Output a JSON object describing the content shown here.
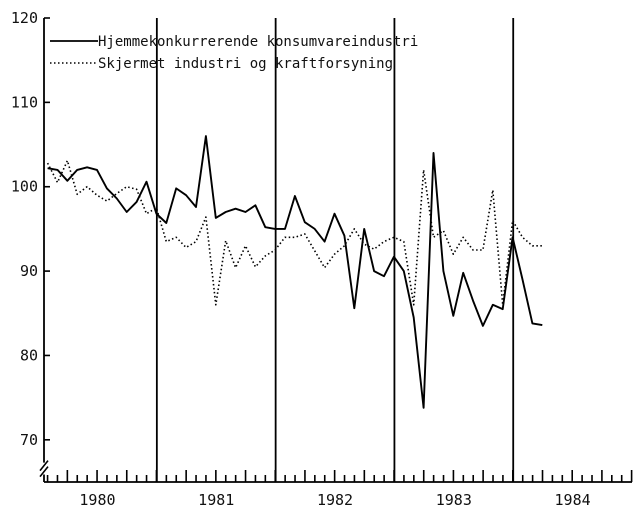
{
  "chart_data": {
    "type": "line",
    "title": "",
    "xlabel": "",
    "ylabel": "",
    "x_start": 1979.58,
    "x_step": 0.0833,
    "xlim": [
      1979.55,
      1984.5
    ],
    "ylim": [
      65,
      120
    ],
    "y_ticks": [
      70,
      80,
      90,
      100,
      110,
      120
    ],
    "y_tick_labels": [
      "70",
      "80",
      "90",
      "100",
      "110",
      "120"
    ],
    "x_tick_labels": [
      "1980",
      "1981",
      "1982",
      "1983",
      "1984"
    ],
    "x_label_positions": [
      1980,
      1981,
      1982,
      1983,
      1984
    ],
    "year_dividers": [
      1980.5,
      1981.5,
      1982.5,
      1983.5
    ],
    "axis_break": true,
    "grid": false,
    "legend": "top-left",
    "series": [
      {
        "name": "Hjemmekonkurrerende konsumvareindustri",
        "style": "solid",
        "values": [
          102.2,
          102.0,
          100.7,
          102.0,
          102.3,
          102.0,
          99.8,
          98.6,
          97.0,
          98.2,
          100.6,
          96.8,
          95.7,
          99.8,
          99.0,
          97.6,
          106.0,
          96.3,
          97.0,
          97.4,
          97.0,
          97.8,
          95.2,
          95.0,
          95.0,
          98.9,
          95.8,
          95.0,
          93.5,
          96.8,
          94.2,
          85.6,
          95.0,
          90.0,
          89.4,
          91.7,
          90.0,
          84.5,
          73.8,
          104.0,
          90.0,
          84.7,
          89.8,
          86.5,
          83.5,
          86.0,
          85.5,
          94.0,
          89.0,
          83.8,
          83.6
        ]
      },
      {
        "name": "Skjermet industri og kraftforsyning",
        "style": "dotted",
        "values": [
          102.8,
          100.5,
          103.1,
          99.1,
          100.0,
          99.0,
          98.3,
          99.2,
          100.0,
          99.7,
          96.8,
          97.5,
          93.5,
          94.0,
          92.8,
          93.5,
          96.4,
          86.0,
          93.6,
          90.4,
          93.0,
          90.5,
          91.8,
          92.5,
          94.0,
          94.0,
          94.4,
          92.4,
          90.4,
          92.0,
          93.0,
          95.0,
          93.2,
          92.6,
          93.5,
          94.0,
          93.5,
          86.0,
          102.0,
          94.0,
          94.8,
          92.0,
          94.0,
          92.5,
          92.5,
          99.6,
          86.0,
          96.0,
          94.0,
          93.0,
          93.0
        ]
      }
    ]
  }
}
